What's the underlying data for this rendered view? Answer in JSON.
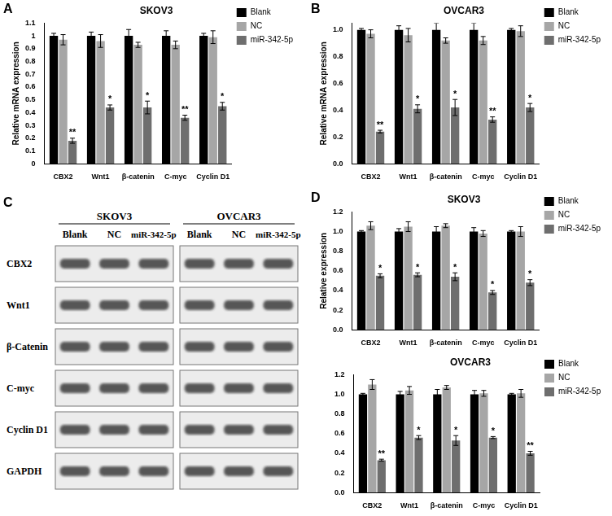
{
  "chart_data": [
    {
      "panel": "A",
      "type": "bar",
      "title": "SKOV3",
      "y_label": "Relative mRNA expression",
      "categories": [
        "CBX2",
        "Wnt1",
        "β-catenin",
        "C-myc",
        "Cyclin D1"
      ],
      "series": [
        {
          "name": "Blank",
          "color": "#000000",
          "values": [
            1,
            1,
            1,
            1,
            1
          ],
          "errors": [
            0.02,
            0.03,
            0.05,
            0.04,
            0.02
          ]
        },
        {
          "name": "NC",
          "color": "#a6a6a6",
          "values": [
            0.97,
            0.96,
            0.93,
            0.93,
            0.99
          ],
          "errors": [
            0.04,
            0.05,
            0.02,
            0.03,
            0.05
          ]
        },
        {
          "name": "miR-342-5p",
          "color": "#6e6e6e",
          "values": [
            0.18,
            0.44,
            0.44,
            0.36,
            0.45
          ],
          "errors": [
            0.02,
            0.02,
            0.05,
            0.02,
            0.03
          ],
          "significance": [
            "**",
            "*",
            "*",
            "**",
            "*"
          ]
        }
      ],
      "ylim": [
        0,
        1.1
      ],
      "yticks": [
        0,
        0.1,
        0.2,
        0.3,
        0.4,
        0.5,
        0.6,
        0.7,
        0.8,
        0.9,
        1,
        1.1
      ],
      "grid": false,
      "legend": "upper right"
    },
    {
      "panel": "B",
      "type": "bar",
      "title": "OVCAR3",
      "y_label": "Relative mRNA expression",
      "categories": [
        "CBX2",
        "Wnt1",
        "β-catenin",
        "C-myc",
        "Cyclin D1"
      ],
      "series": [
        {
          "name": "Blank",
          "color": "#000000",
          "values": [
            1,
            1,
            1,
            1,
            1
          ],
          "errors": [
            0.01,
            0.03,
            0.05,
            0.05,
            0.01
          ]
        },
        {
          "name": "NC",
          "color": "#a6a6a6",
          "values": [
            0.97,
            0.96,
            0.92,
            0.92,
            0.99
          ],
          "errors": [
            0.03,
            0.05,
            0.02,
            0.03,
            0.04
          ]
        },
        {
          "name": "miR-342-5p",
          "color": "#6e6e6e",
          "values": [
            0.24,
            0.41,
            0.42,
            0.33,
            0.42
          ],
          "errors": [
            0.01,
            0.03,
            0.06,
            0.02,
            0.03
          ],
          "significance": [
            "**",
            "*",
            "*",
            "**",
            "*"
          ]
        }
      ],
      "ylim": [
        0,
        1.05
      ],
      "yticks": [
        {
          "value": 0,
          "label": "0.0"
        },
        {
          "value": 0.2,
          "label": "0.2"
        },
        {
          "value": 0.4,
          "label": "0.4"
        },
        {
          "value": 0.6,
          "label": "0.6"
        },
        {
          "value": 0.8,
          "label": "0.8"
        },
        {
          "value": 1,
          "label": "1.0"
        }
      ],
      "grid": false,
      "legend": "upper right"
    },
    {
      "panel": "D",
      "type": "bar",
      "title": "SKOV3",
      "y_label": "Relative expression",
      "categories": [
        "CBX2",
        "Wnt1",
        "β-catenin",
        "C-myc",
        "Cyclin D1"
      ],
      "series": [
        {
          "name": "Blank",
          "color": "#000000",
          "values": [
            1,
            1,
            1,
            1,
            1
          ],
          "errors": [
            0.01,
            0.03,
            0.05,
            0.04,
            0.01
          ]
        },
        {
          "name": "NC",
          "color": "#a6a6a6",
          "values": [
            1.06,
            1.05,
            1.06,
            0.98,
            1.0
          ],
          "errors": [
            0.04,
            0.05,
            0.02,
            0.03,
            0.05
          ]
        },
        {
          "name": "miR-342-5p",
          "color": "#6e6e6e",
          "values": [
            0.55,
            0.56,
            0.54,
            0.38,
            0.48
          ],
          "errors": [
            0.02,
            0.02,
            0.04,
            0.02,
            0.03
          ],
          "significance": [
            "*",
            "*",
            "*",
            "*",
            "*"
          ]
        }
      ],
      "ylim": [
        0,
        1.2
      ],
      "yticks": [
        {
          "value": 0,
          "label": "0.0"
        },
        {
          "value": 0.2,
          "label": "0.2"
        },
        {
          "value": 0.4,
          "label": "0.4"
        },
        {
          "value": 0.6,
          "label": "0.6"
        },
        {
          "value": 0.8,
          "label": "0.8"
        },
        {
          "value": 1,
          "label": "1.0"
        },
        {
          "value": 1.2,
          "label": "1.2"
        }
      ],
      "grid": false,
      "legend": "upper right"
    },
    {
      "type": "bar",
      "title": "OVCAR3",
      "categories": [
        "CBX2",
        "Wnt1",
        "β-catenin",
        "C-myc",
        "Cyclin D1"
      ],
      "series": [
        {
          "name": "Blank",
          "color": "#000000",
          "values": [
            1,
            1,
            1,
            1,
            1
          ],
          "errors": [
            0.01,
            0.03,
            0.05,
            0.04,
            0.01
          ]
        },
        {
          "name": "NC",
          "color": "#a6a6a6",
          "values": [
            1.1,
            1.04,
            1.07,
            1.01,
            1.01
          ],
          "errors": [
            0.05,
            0.04,
            0.02,
            0.03,
            0.04
          ]
        },
        {
          "name": "miR-342-5p",
          "color": "#6e6e6e",
          "values": [
            0.33,
            0.56,
            0.53,
            0.56,
            0.4
          ],
          "errors": [
            0.01,
            0.02,
            0.05,
            0.01,
            0.02
          ],
          "significance": [
            "**",
            "*",
            "*",
            "*",
            "**"
          ]
        }
      ],
      "ylim": [
        0,
        1.2
      ],
      "yticks": [
        {
          "value": 0,
          "label": "0.0"
        },
        {
          "value": 0.2,
          "label": "0.2"
        },
        {
          "value": 0.4,
          "label": "0.4"
        },
        {
          "value": 0.6,
          "label": "0.6"
        },
        {
          "value": 0.8,
          "label": "0.8"
        },
        {
          "value": 1,
          "label": "1.0"
        },
        {
          "value": 1.2,
          "label": "1.2"
        }
      ],
      "grid": false,
      "legend": "upper right"
    }
  ],
  "blot": {
    "panel": "C",
    "cell_lines": [
      "SKOV3",
      "OVCAR3"
    ],
    "lanes": [
      "Blank",
      "NC",
      "miR-342-5p"
    ],
    "proteins": [
      "CBX2",
      "Wnt1",
      "β-Catenin",
      "C-myc",
      "Cyclin D1",
      "GAPDH"
    ]
  }
}
